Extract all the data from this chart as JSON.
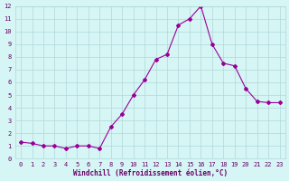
{
  "x": [
    0,
    1,
    2,
    3,
    4,
    5,
    6,
    7,
    8,
    9,
    10,
    11,
    12,
    13,
    14,
    15,
    16,
    17,
    18,
    19,
    20,
    21,
    22,
    23
  ],
  "y": [
    1.3,
    1.2,
    1.0,
    1.0,
    0.8,
    1.0,
    1.0,
    0.8,
    2.5,
    3.5,
    5.0,
    6.2,
    7.8,
    8.2,
    10.5,
    11.0,
    12.0,
    9.0,
    7.5,
    7.3,
    5.5,
    4.5,
    4.4,
    4.4
  ],
  "line_color": "#990099",
  "marker": "D",
  "marker_size": 2.0,
  "bg_color": "#d6f5f5",
  "grid_color": "#b0d8d8",
  "xlabel": "Windchill (Refroidissement éolien,°C)",
  "xlabel_color": "#660066",
  "tick_color": "#660066",
  "ylim": [
    0,
    12
  ],
  "xlim": [
    -0.5,
    23.5
  ],
  "yticks": [
    0,
    1,
    2,
    3,
    4,
    5,
    6,
    7,
    8,
    9,
    10,
    11,
    12
  ],
  "xticks": [
    0,
    1,
    2,
    3,
    4,
    5,
    6,
    7,
    8,
    9,
    10,
    11,
    12,
    13,
    14,
    15,
    16,
    17,
    18,
    19,
    20,
    21,
    22,
    23
  ]
}
